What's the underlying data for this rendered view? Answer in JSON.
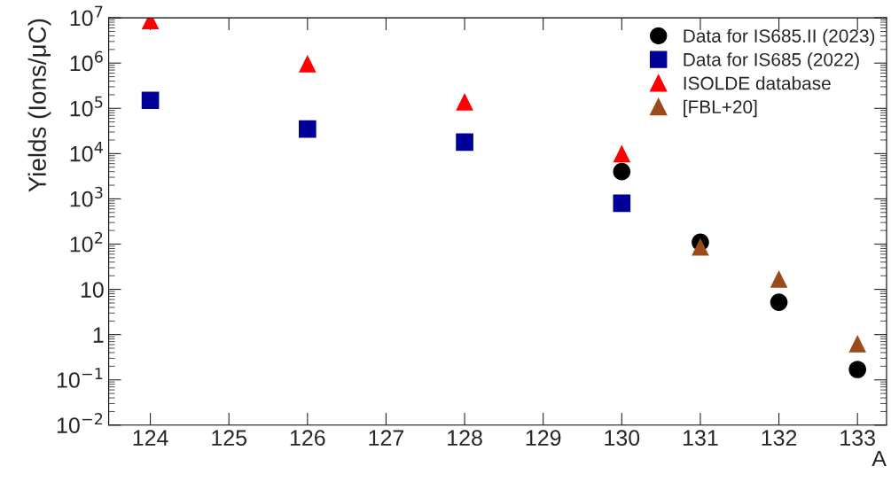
{
  "chart_data": {
    "type": "scatter",
    "xlabel": "A",
    "ylabel": "Yields (Ions/μC)",
    "log": "y",
    "xlim": [
      123.47,
      133.37
    ],
    "xticks": [
      124,
      125,
      126,
      127,
      128,
      129,
      130,
      131,
      132,
      133
    ],
    "ylim": [
      0.01,
      10000000
    ],
    "yticks": [
      {
        "value": 0.01,
        "label": "10$^{−2}$"
      },
      {
        "value": 0.1,
        "label": "10$^{−1}$"
      },
      {
        "value": 1,
        "label": "1"
      },
      {
        "value": 10,
        "label": "10"
      },
      {
        "value": 100,
        "label": "10$^{2}$"
      },
      {
        "value": 1000,
        "label": "10$^{3}$"
      },
      {
        "value": 10000,
        "label": "10$^{4}$"
      },
      {
        "value": 100000,
        "label": "10$^{5}$"
      },
      {
        "value": 1000000,
        "label": "10$^{6}$"
      },
      {
        "value": 10000000,
        "label": "10$^{7}$"
      }
    ],
    "legend": "top right",
    "grid": false,
    "series": [
      {
        "name": "Data for IS685.II (2023)",
        "color": "#000000",
        "marker": "circle",
        "x": [
          130,
          131,
          132,
          133
        ],
        "values": [
          4000,
          110,
          5.2,
          0.17
        ]
      },
      {
        "name": "Data for IS685 (2022)",
        "color": "#000099",
        "marker": "square",
        "x": [
          124,
          126,
          128,
          130
        ],
        "values": [
          150000,
          35000,
          18000,
          800
        ]
      },
      {
        "name": "ISOLDE database",
        "color": "#ff0000",
        "marker": "triangle",
        "x": [
          124,
          126,
          128,
          130
        ],
        "values": [
          8700000,
          970000,
          140000,
          10000
        ]
      },
      {
        "name": "[FBL+20]",
        "color": "#994c1a",
        "marker": "triangle",
        "x": [
          131,
          132,
          133
        ],
        "values": [
          87,
          17,
          0.63
        ]
      }
    ]
  }
}
